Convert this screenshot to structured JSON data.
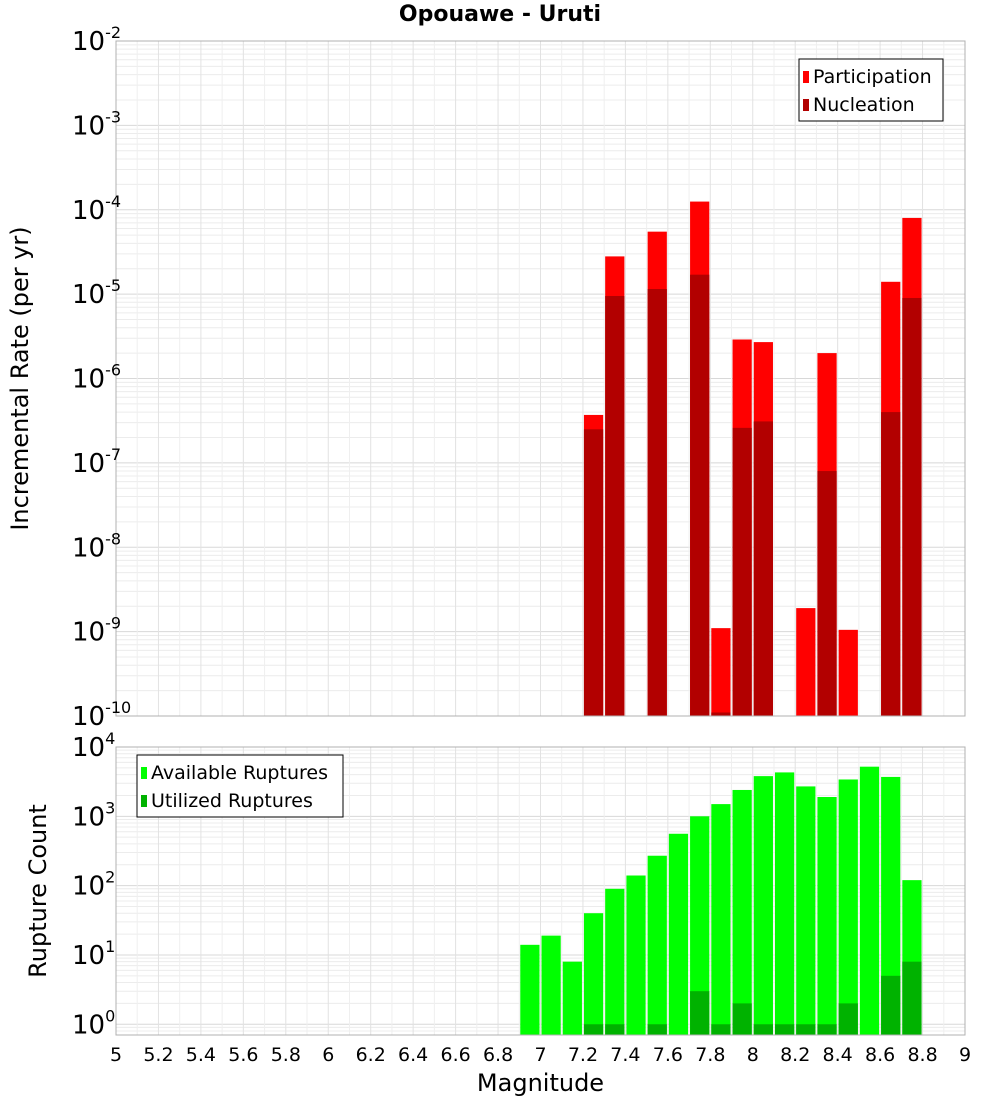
{
  "title": "Opouawe - Uruti",
  "chart_data": [
    {
      "type": "bar",
      "panel": "top",
      "title": "Opouawe - Uruti",
      "xlabel": "",
      "ylabel": "Incremental Rate (per yr)",
      "yscale": "log",
      "ylim": [
        1e-10,
        0.01
      ],
      "xlim": [
        5,
        9
      ],
      "ytick_exponents": [
        -10,
        -9,
        -8,
        -7,
        -6,
        -5,
        -4,
        -3,
        -2
      ],
      "legend": {
        "placement": "top-right",
        "entries": [
          "Participation",
          "Nucleation"
        ]
      },
      "grid": true,
      "colors": {
        "Participation": "#ff0000",
        "Nucleation": "#b20000"
      },
      "x": [
        7.25,
        7.35,
        7.55,
        7.75,
        7.85,
        7.95,
        8.05,
        8.25,
        8.35,
        8.45,
        8.65,
        8.75
      ],
      "series": [
        {
          "name": "Participation",
          "values": [
            3.7e-07,
            2.8e-05,
            5.5e-05,
            0.000125,
            1.1e-09,
            2.9e-06,
            2.7e-06,
            1.9e-09,
            2e-06,
            1.05e-09,
            1.4e-05,
            8e-05
          ]
        },
        {
          "name": "Nucleation",
          "values": [
            2.5e-07,
            9.5e-06,
            1.15e-05,
            1.7e-05,
            1.1e-10,
            2.6e-07,
            3.1e-07,
            null,
            8e-08,
            null,
            4e-07,
            9e-06
          ]
        }
      ]
    },
    {
      "type": "bar",
      "panel": "bottom",
      "xlabel": "Magnitude",
      "ylabel": "Rupture Count",
      "yscale": "log",
      "ylim": [
        0.7,
        10000
      ],
      "xlim": [
        5,
        9
      ],
      "ytick_exponents": [
        0,
        1,
        2,
        3,
        4
      ],
      "xticks": [
        "5",
        "5.2",
        "5.4",
        "5.6",
        "5.8",
        "6",
        "6.2",
        "6.4",
        "6.6",
        "6.8",
        "7",
        "7.2",
        "7.4",
        "7.6",
        "7.8",
        "8",
        "8.2",
        "8.4",
        "8.6",
        "8.8",
        "9"
      ],
      "legend": {
        "placement": "top-left",
        "entries": [
          "Available Ruptures",
          "Utilized Ruptures"
        ]
      },
      "grid": true,
      "colors": {
        "Available Ruptures": "#00ff00",
        "Utilized Ruptures": "#00b200"
      },
      "x": [
        6.95,
        7.05,
        7.15,
        7.25,
        7.35,
        7.45,
        7.55,
        7.65,
        7.75,
        7.85,
        7.95,
        8.05,
        8.15,
        8.25,
        8.35,
        8.45,
        8.55,
        8.65,
        8.75
      ],
      "series": [
        {
          "name": "Available Ruptures",
          "values": [
            14,
            19,
            8,
            40,
            90,
            140,
            270,
            560,
            1000,
            1500,
            2400,
            3800,
            4300,
            2700,
            1900,
            3400,
            5200,
            3700,
            120
          ]
        },
        {
          "name": "Utilized Ruptures",
          "values": [
            null,
            null,
            null,
            1,
            1,
            null,
            1,
            null,
            3,
            1,
            2,
            1,
            1,
            1,
            1,
            2,
            null,
            5,
            8
          ]
        }
      ]
    }
  ]
}
